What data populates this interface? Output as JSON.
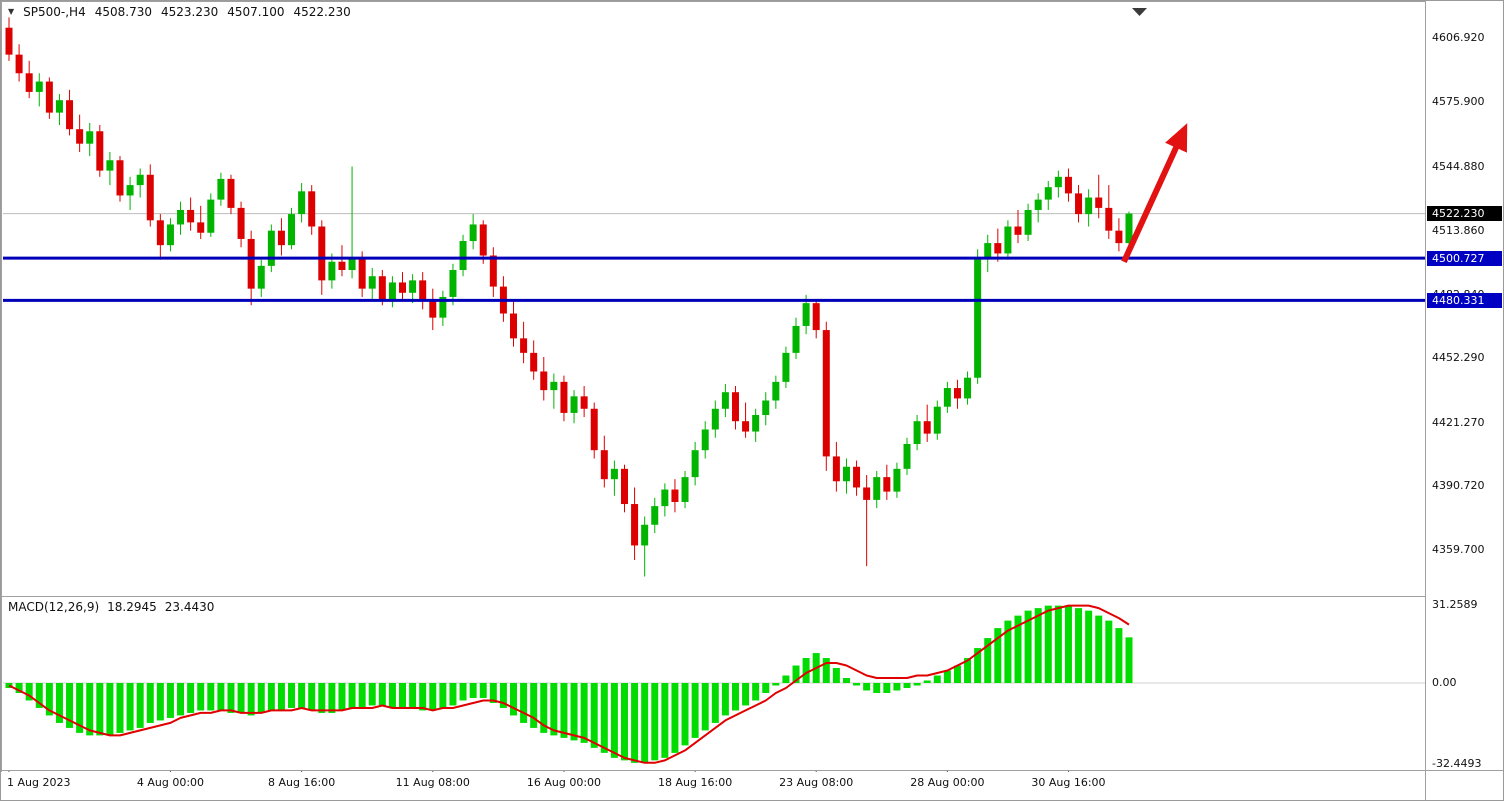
{
  "header": {
    "title": "SP500-,H4",
    "open": "4508.730",
    "high": "4523.230",
    "low": "4507.100",
    "close": "4522.230"
  },
  "macd_label": {
    "name": "MACD(12,26,9)",
    "main_value": "18.2945",
    "signal_value": "23.4430"
  },
  "price_axis": {
    "current_price_label": "4522.230",
    "level_labels": [
      "4500.727",
      "4480.331"
    ]
  },
  "colors": {
    "candle_up": "#00b400",
    "candle_down": "#dc0000",
    "macd_histogram": "#00dc00",
    "macd_signal": "#e00000",
    "level_line": "#0000b9",
    "price_box_blue": "#0000c3",
    "price_box_current": "#000000",
    "arrow": "#e31212",
    "border": "#a0a0a0",
    "grid": "#d0d0d0",
    "current_price_line": "#bdbdbd",
    "text": "#111111"
  },
  "chart_data": [
    {
      "type": "candlestick",
      "title": "SP500-,H4",
      "timeframe": "H4",
      "ylim": [
        4340,
        4622
      ],
      "current_price": 4522.23,
      "y_ticks": [
        {
          "label": "4606.920",
          "price": 4606.92
        },
        {
          "label": "4575.900",
          "price": 4575.9
        },
        {
          "label": "4544.880",
          "price": 4544.88
        },
        {
          "label": "4513.860",
          "price": 4513.86
        },
        {
          "label": "4482.840",
          "price": 4482.84
        },
        {
          "label": "4452.290",
          "price": 4452.29
        },
        {
          "label": "4421.270",
          "price": 4421.27
        },
        {
          "label": "4390.720",
          "price": 4390.72
        },
        {
          "label": "4359.700",
          "price": 4359.7
        }
      ],
      "x_ticks": [
        {
          "label": "1 Aug 2023",
          "index": 0
        },
        {
          "label": "4 Aug 00:00",
          "index": 16
        },
        {
          "label": "8 Aug 16:00",
          "index": 29
        },
        {
          "label": "11 Aug 08:00",
          "index": 42
        },
        {
          "label": "16 Aug 00:00",
          "index": 55
        },
        {
          "label": "18 Aug 16:00",
          "index": 68
        },
        {
          "label": "23 Aug 08:00",
          "index": 80
        },
        {
          "label": "28 Aug 00:00",
          "index": 93
        },
        {
          "label": "30 Aug 16:00",
          "index": 105
        }
      ],
      "horizontal_levels": [
        {
          "label": "4500.727",
          "price": 4500.727
        },
        {
          "label": "4480.331",
          "price": 4480.331
        }
      ],
      "annotations": [
        {
          "type": "arrow",
          "from_index": 110.5,
          "from_price": 4499,
          "to_index": 116.5,
          "to_price": 4563
        }
      ],
      "candles": [
        [
          4612,
          4617,
          4596,
          4599
        ],
        [
          4599,
          4604,
          4586,
          4590
        ],
        [
          4590,
          4596,
          4578,
          4581
        ],
        [
          4581,
          4590,
          4574,
          4586
        ],
        [
          4586,
          4588,
          4568,
          4571
        ],
        [
          4571,
          4580,
          4565,
          4577
        ],
        [
          4577,
          4582,
          4560,
          4563
        ],
        [
          4563,
          4570,
          4552,
          4556
        ],
        [
          4556,
          4566,
          4550,
          4562
        ],
        [
          4562,
          4565,
          4540,
          4543
        ],
        [
          4543,
          4552,
          4536,
          4548
        ],
        [
          4548,
          4550,
          4528,
          4531
        ],
        [
          4531,
          4540,
          4524,
          4536
        ],
        [
          4536,
          4544,
          4530,
          4541
        ],
        [
          4541,
          4546,
          4516,
          4519
        ],
        [
          4519,
          4522,
          4500,
          4507
        ],
        [
          4507,
          4520,
          4504,
          4517
        ],
        [
          4517,
          4528,
          4512,
          4524
        ],
        [
          4524,
          4530,
          4514,
          4518
        ],
        [
          4518,
          4526,
          4510,
          4513
        ],
        [
          4513,
          4532,
          4511,
          4529
        ],
        [
          4529,
          4542,
          4526,
          4539
        ],
        [
          4539,
          4541,
          4522,
          4525
        ],
        [
          4525,
          4528,
          4506,
          4510
        ],
        [
          4510,
          4514,
          4478,
          4486
        ],
        [
          4486,
          4500,
          4482,
          4497
        ],
        [
          4497,
          4517,
          4494,
          4514
        ],
        [
          4514,
          4520,
          4502,
          4507
        ],
        [
          4507,
          4525,
          4505,
          4522
        ],
        [
          4522,
          4537,
          4518,
          4533
        ],
        [
          4533,
          4536,
          4512,
          4516
        ],
        [
          4516,
          4519,
          4483,
          4490
        ],
        [
          4490,
          4503,
          4486,
          4499
        ],
        [
          4499,
          4507,
          4492,
          4495
        ],
        [
          4495,
          4545,
          4491,
          4501
        ],
        [
          4501,
          4504,
          4482,
          4486
        ],
        [
          4486,
          4496,
          4480,
          4492
        ],
        [
          4492,
          4495,
          4478,
          4481
        ],
        [
          4481,
          4492,
          4477,
          4489
        ],
        [
          4489,
          4494,
          4480,
          4484
        ],
        [
          4484,
          4493,
          4479,
          4490
        ],
        [
          4490,
          4494,
          4476,
          4480
        ],
        [
          4480,
          4486,
          4466,
          4472
        ],
        [
          4472,
          4485,
          4468,
          4482
        ],
        [
          4482,
          4498,
          4478,
          4495
        ],
        [
          4495,
          4512,
          4492,
          4509
        ],
        [
          4509,
          4522,
          4505,
          4517
        ],
        [
          4517,
          4519,
          4498,
          4502
        ],
        [
          4502,
          4506,
          4482,
          4487
        ],
        [
          4487,
          4492,
          4470,
          4474
        ],
        [
          4474,
          4481,
          4458,
          4462
        ],
        [
          4462,
          4470,
          4450,
          4455
        ],
        [
          4455,
          4461,
          4442,
          4446
        ],
        [
          4446,
          4453,
          4432,
          4437
        ],
        [
          4437,
          4445,
          4428,
          4441
        ],
        [
          4441,
          4444,
          4422,
          4426
        ],
        [
          4426,
          4437,
          4421,
          4434
        ],
        [
          4434,
          4439,
          4424,
          4428
        ],
        [
          4428,
          4431,
          4404,
          4408
        ],
        [
          4408,
          4415,
          4390,
          4394
        ],
        [
          4394,
          4403,
          4386,
          4399
        ],
        [
          4399,
          4401,
          4378,
          4382
        ],
        [
          4382,
          4390,
          4355,
          4362
        ],
        [
          4362,
          4376,
          4347,
          4372
        ],
        [
          4372,
          4385,
          4368,
          4381
        ],
        [
          4381,
          4392,
          4376,
          4389
        ],
        [
          4389,
          4394,
          4378,
          4383
        ],
        [
          4383,
          4398,
          4380,
          4395
        ],
        [
          4395,
          4412,
          4391,
          4408
        ],
        [
          4408,
          4422,
          4404,
          4418
        ],
        [
          4418,
          4432,
          4414,
          4428
        ],
        [
          4428,
          4440,
          4424,
          4436
        ],
        [
          4436,
          4439,
          4418,
          4422
        ],
        [
          4422,
          4431,
          4414,
          4417
        ],
        [
          4417,
          4428,
          4412,
          4425
        ],
        [
          4425,
          4436,
          4420,
          4432
        ],
        [
          4432,
          4444,
          4428,
          4441
        ],
        [
          4441,
          4458,
          4438,
          4455
        ],
        [
          4455,
          4472,
          4452,
          4468
        ],
        [
          4468,
          4483,
          4464,
          4479
        ],
        [
          4479,
          4481,
          4462,
          4466
        ],
        [
          4466,
          4470,
          4398,
          4405
        ],
        [
          4405,
          4412,
          4388,
          4393
        ],
        [
          4393,
          4404,
          4387,
          4400
        ],
        [
          4400,
          4403,
          4386,
          4390
        ],
        [
          4390,
          4396,
          4352,
          4384
        ],
        [
          4384,
          4398,
          4380,
          4395
        ],
        [
          4395,
          4401,
          4384,
          4388
        ],
        [
          4388,
          4402,
          4385,
          4399
        ],
        [
          4399,
          4414,
          4396,
          4411
        ],
        [
          4411,
          4425,
          4408,
          4422
        ],
        [
          4422,
          4430,
          4412,
          4416
        ],
        [
          4416,
          4432,
          4413,
          4429
        ],
        [
          4429,
          4441,
          4426,
          4438
        ],
        [
          4438,
          4442,
          4428,
          4433
        ],
        [
          4433,
          4446,
          4430,
          4443
        ],
        [
          4443,
          4505,
          4440,
          4501
        ],
        [
          4501,
          4512,
          4494,
          4508
        ],
        [
          4508,
          4515,
          4499,
          4503
        ],
        [
          4503,
          4519,
          4500,
          4516
        ],
        [
          4516,
          4524,
          4508,
          4512
        ],
        [
          4512,
          4527,
          4509,
          4524
        ],
        [
          4524,
          4532,
          4518,
          4529
        ],
        [
          4529,
          4538,
          4524,
          4535
        ],
        [
          4535,
          4543,
          4530,
          4540
        ],
        [
          4540,
          4544,
          4528,
          4532
        ],
        [
          4532,
          4536,
          4518,
          4522
        ],
        [
          4522,
          4534,
          4516,
          4530
        ],
        [
          4530,
          4541,
          4520,
          4525
        ],
        [
          4525,
          4536,
          4510,
          4514
        ],
        [
          4514,
          4520,
          4504,
          4508
        ],
        [
          4508,
          4523.23,
          4505,
          4522.23
        ]
      ]
    },
    {
      "type": "bar",
      "title": "MACD(12,26,9)",
      "ylim": [
        -34.5,
        34.5
      ],
      "y_ticks": [
        {
          "label": "31.2589",
          "value": 31.2589
        },
        {
          "label": "0.00",
          "value": 0
        },
        {
          "label": "-32.4493",
          "value": -32.4493
        }
      ],
      "series": [
        {
          "name": "MACD histogram",
          "render": "bar",
          "values": [
            -2,
            -4,
            -7,
            -10,
            -13,
            -16,
            -18,
            -20,
            -21,
            -21,
            -21,
            -20,
            -19,
            -18,
            -16,
            -15,
            -14,
            -13,
            -12,
            -11,
            -11,
            -11,
            -12,
            -12,
            -13,
            -12,
            -11,
            -11,
            -10,
            -10,
            -11,
            -12,
            -12,
            -11,
            -10,
            -10,
            -9,
            -9,
            -10,
            -10,
            -10,
            -11,
            -11,
            -10,
            -9,
            -7,
            -6,
            -6,
            -8,
            -10,
            -13,
            -16,
            -18,
            -20,
            -21,
            -22,
            -23,
            -24,
            -26,
            -28,
            -30,
            -31,
            -32,
            -32,
            -31,
            -30,
            -28,
            -25,
            -22,
            -19,
            -16,
            -13,
            -11,
            -9,
            -7,
            -4,
            -1,
            3,
            7,
            10,
            12,
            10,
            6,
            2,
            -1,
            -3,
            -4,
            -4,
            -3,
            -2,
            -1,
            1,
            3,
            5,
            7,
            10,
            14,
            18,
            22,
            25,
            27,
            29,
            30,
            31,
            31,
            31,
            30,
            29,
            27,
            25,
            22,
            18.3
          ]
        },
        {
          "name": "Signal",
          "render": "line",
          "values": [
            -1,
            -3,
            -5,
            -8,
            -11,
            -13,
            -15,
            -17,
            -19,
            -20,
            -21,
            -21,
            -20,
            -19,
            -18,
            -17,
            -16,
            -14,
            -13,
            -12,
            -12,
            -11,
            -11,
            -12,
            -12,
            -12,
            -11,
            -11,
            -11,
            -10,
            -11,
            -11,
            -11,
            -11,
            -10,
            -10,
            -10,
            -9,
            -10,
            -10,
            -10,
            -10,
            -11,
            -10,
            -10,
            -9,
            -8,
            -7,
            -7,
            -8,
            -10,
            -12,
            -14,
            -17,
            -19,
            -20,
            -21,
            -22,
            -24,
            -26,
            -28,
            -30,
            -31,
            -32,
            -32,
            -31,
            -29,
            -27,
            -24,
            -21,
            -18,
            -15,
            -13,
            -11,
            -9,
            -7,
            -4,
            -2,
            1,
            4,
            6,
            8,
            8,
            7,
            5,
            3,
            2,
            2,
            2,
            2,
            3,
            3,
            4,
            5,
            7,
            9,
            12,
            15,
            18,
            21,
            23,
            25,
            27,
            29,
            30,
            31,
            31,
            31,
            30,
            28,
            26,
            23.4
          ]
        }
      ]
    }
  ]
}
